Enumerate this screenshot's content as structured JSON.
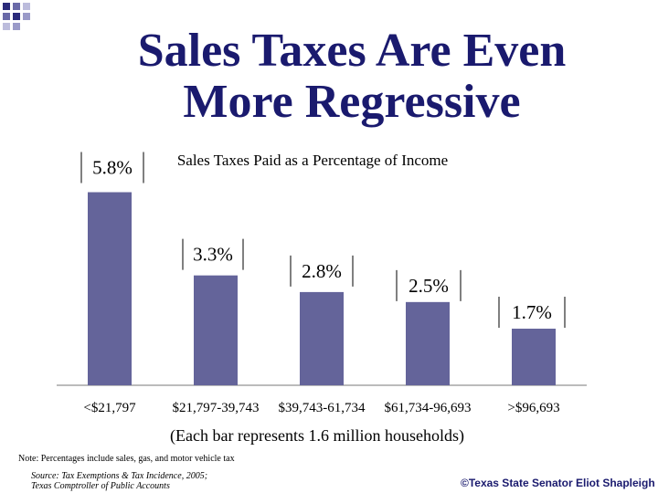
{
  "title": "Sales Taxes Are Even More Regressive",
  "chart_data": {
    "type": "bar",
    "title": "Sales Taxes Paid as a Percentage of Income",
    "categories": [
      "<$21,797",
      "$21,797-39,743",
      "$39,743-61,734",
      "$61,734-96,693",
      ">$96,693"
    ],
    "values": [
      5.8,
      3.3,
      2.8,
      2.5,
      1.7
    ],
    "data_labels": [
      "5.8%",
      "3.3%",
      "2.8%",
      "2.5%",
      "1.7%"
    ],
    "xlabel": "(Each bar represents 1.6 million households)",
    "ylabel": "",
    "ylim": [
      0,
      6.5
    ],
    "bar_color": "#64649a",
    "grid": false
  },
  "note": "Note: Percentages include sales, gas, and motor vehicle tax",
  "source_line1": "Source:  Tax Exemptions & Tax Incidence, 2005;",
  "source_line2": "Texas Comptroller of Public Accounts",
  "copyright": "©Texas State Senator Eliot Shapleigh",
  "colors": {
    "title": "#1a1a6e",
    "accent_squares": "#1a1a6e"
  }
}
